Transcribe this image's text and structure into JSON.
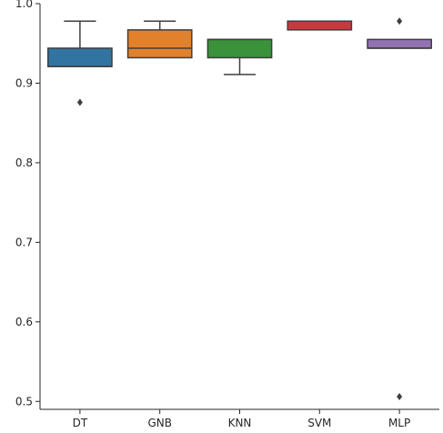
{
  "chart_data": {
    "type": "box",
    "categories": [
      "DT",
      "GNB",
      "KNN",
      "SVM",
      "MLP"
    ],
    "ylim": [
      0.49,
      1.0
    ],
    "yticks": [
      0.5,
      0.6,
      0.7,
      0.8,
      0.9,
      1.0
    ],
    "ytick_labels": [
      "0.5",
      "0.6",
      "0.7",
      "0.8",
      "0.9",
      "1.0"
    ],
    "grid": false,
    "title": "",
    "xlabel": "",
    "ylabel": "",
    "boxes": [
      {
        "name": "DT",
        "color": "#3274a1",
        "whisker_low": 0.921,
        "q1": 0.921,
        "median": 0.921,
        "q3": 0.944,
        "whisker_high": 0.978,
        "outliers": [
          0.876
        ]
      },
      {
        "name": "GNB",
        "color": "#e1812c",
        "whisker_low": 0.932,
        "q1": 0.932,
        "median": 0.944,
        "q3": 0.967,
        "whisker_high": 0.978,
        "outliers": []
      },
      {
        "name": "KNN",
        "color": "#3a923a",
        "whisker_low": 0.911,
        "q1": 0.932,
        "median": 0.955,
        "q3": 0.955,
        "whisker_high": 0.955,
        "outliers": []
      },
      {
        "name": "SVM",
        "color": "#c03d3e",
        "whisker_low": 0.967,
        "q1": 0.967,
        "median": 0.978,
        "q3": 0.978,
        "whisker_high": 0.978,
        "outliers": []
      },
      {
        "name": "MLP",
        "color": "#9372b2",
        "whisker_low": 0.944,
        "q1": 0.944,
        "median": 0.944,
        "q3": 0.955,
        "whisker_high": 0.955,
        "outliers": [
          0.978,
          0.506
        ]
      }
    ]
  }
}
